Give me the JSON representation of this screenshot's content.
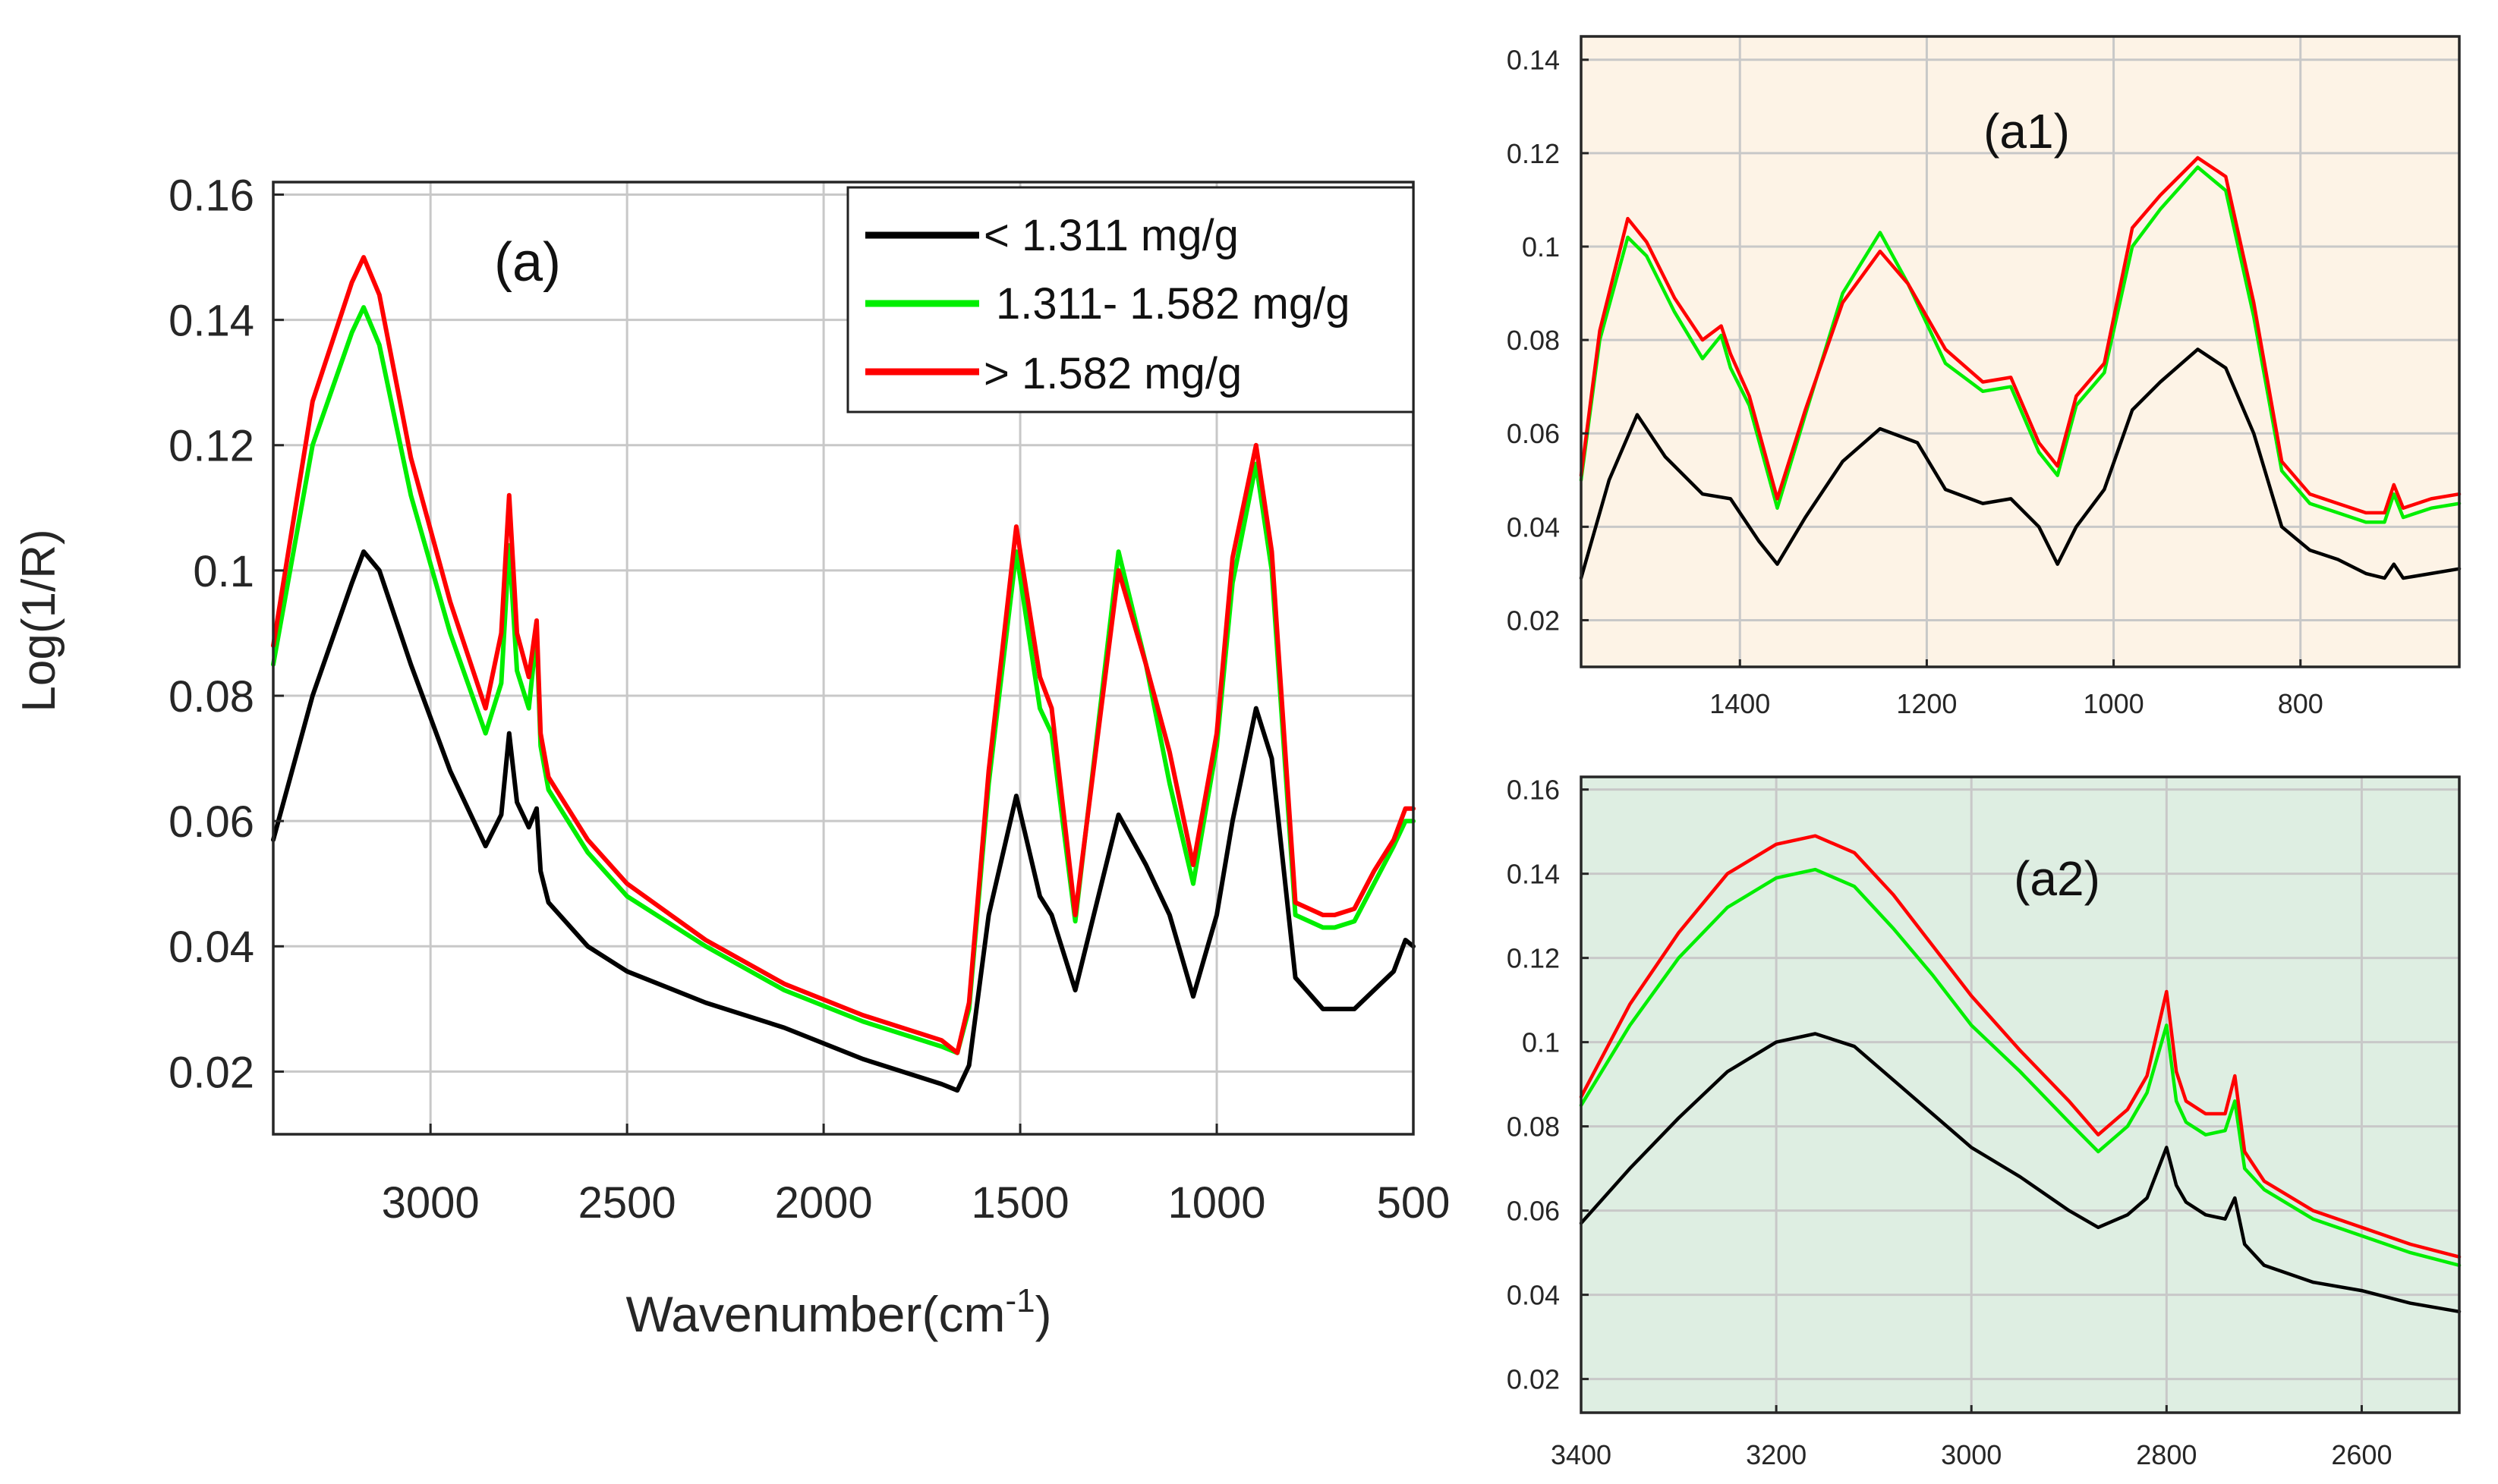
{
  "figure": {
    "ylabel": "Log(1/R)",
    "xlabel_main": "Wavenumber(cm",
    "xlabel_sup": "-1",
    "xlabel_close": ")"
  },
  "legend": [
    {
      "label": "< 1.311 mg/g",
      "color": "#000000"
    },
    {
      "label": "1.311- 1.582 mg/g",
      "color": "#00ee00"
    },
    {
      "label": "> 1.582 mg/g",
      "color": "#ff0000"
    }
  ],
  "chart_data": [
    {
      "id": "a",
      "type": "line",
      "title": "(a)",
      "xlabel": "Wavenumber(cm-1)",
      "ylabel": "Log(1/R)",
      "xlim": [
        3400,
        500
      ],
      "ylim": [
        0.01,
        0.162
      ],
      "xticks": [
        3000,
        2500,
        2000,
        1500,
        1000,
        500
      ],
      "xtick_labels": [
        "3000",
        "2500",
        "2000",
        "1500",
        "1000",
        "500"
      ],
      "yticks": [
        0.02,
        0.04,
        0.06,
        0.08,
        0.1,
        0.12,
        0.14,
        0.16
      ],
      "ytick_labels": [
        "0.02",
        "0.04",
        "0.06",
        "0.08",
        "0.1",
        "0.12",
        "0.14",
        "0.16"
      ],
      "grid": true,
      "background": "#ffffff",
      "legend_position": "top-right",
      "series": [
        {
          "name": "< 1.311 mg/g",
          "color": "#000000",
          "x": [
            3400,
            3300,
            3200,
            3170,
            3130,
            3050,
            2950,
            2860,
            2820,
            2800,
            2780,
            2750,
            2730,
            2720,
            2700,
            2600,
            2500,
            2300,
            2100,
            1900,
            1700,
            1660,
            1630,
            1580,
            1510,
            1450,
            1420,
            1360,
            1250,
            1180,
            1120,
            1060,
            1000,
            960,
            900,
            860,
            800,
            730,
            700,
            650,
            600,
            550,
            520,
            500
          ],
          "y": [
            0.057,
            0.08,
            0.098,
            0.103,
            0.1,
            0.085,
            0.068,
            0.056,
            0.061,
            0.074,
            0.063,
            0.059,
            0.062,
            0.052,
            0.047,
            0.04,
            0.036,
            0.031,
            0.027,
            0.022,
            0.018,
            0.017,
            0.021,
            0.045,
            0.064,
            0.048,
            0.045,
            0.033,
            0.061,
            0.053,
            0.045,
            0.032,
            0.045,
            0.06,
            0.078,
            0.07,
            0.035,
            0.03,
            0.03,
            0.03,
            0.033,
            0.036,
            0.041,
            0.04
          ]
        },
        {
          "name": "1.311- 1.582 mg/g",
          "color": "#00ee00",
          "x": [
            3400,
            3300,
            3200,
            3170,
            3130,
            3050,
            2950,
            2860,
            2820,
            2800,
            2780,
            2750,
            2730,
            2720,
            2700,
            2600,
            2500,
            2300,
            2100,
            1900,
            1700,
            1660,
            1630,
            1580,
            1510,
            1450,
            1420,
            1360,
            1250,
            1180,
            1120,
            1060,
            1000,
            960,
            900,
            860,
            800,
            730,
            700,
            650,
            600,
            550,
            520,
            500
          ],
          "y": [
            0.085,
            0.12,
            0.138,
            0.142,
            0.136,
            0.112,
            0.09,
            0.074,
            0.082,
            0.104,
            0.084,
            0.078,
            0.09,
            0.072,
            0.065,
            0.055,
            0.048,
            0.04,
            0.033,
            0.028,
            0.024,
            0.023,
            0.03,
            0.066,
            0.103,
            0.078,
            0.074,
            0.044,
            0.103,
            0.085,
            0.066,
            0.05,
            0.072,
            0.098,
            0.117,
            0.1,
            0.045,
            0.043,
            0.043,
            0.044,
            0.05,
            0.056,
            0.06,
            0.06
          ]
        },
        {
          "name": "> 1.582 mg/g",
          "color": "#ff0000",
          "x": [
            3400,
            3300,
            3200,
            3170,
            3130,
            3050,
            2950,
            2860,
            2820,
            2800,
            2780,
            2750,
            2730,
            2720,
            2700,
            2600,
            2500,
            2300,
            2100,
            1900,
            1700,
            1660,
            1630,
            1580,
            1510,
            1450,
            1420,
            1360,
            1250,
            1180,
            1120,
            1060,
            1000,
            960,
            900,
            860,
            800,
            730,
            700,
            650,
            600,
            550,
            520,
            500
          ],
          "y": [
            0.088,
            0.127,
            0.146,
            0.15,
            0.144,
            0.118,
            0.095,
            0.078,
            0.09,
            0.112,
            0.09,
            0.083,
            0.092,
            0.074,
            0.067,
            0.057,
            0.05,
            0.041,
            0.034,
            0.029,
            0.025,
            0.023,
            0.031,
            0.068,
            0.107,
            0.083,
            0.078,
            0.045,
            0.1,
            0.085,
            0.071,
            0.053,
            0.074,
            0.102,
            0.12,
            0.103,
            0.047,
            0.045,
            0.045,
            0.046,
            0.052,
            0.057,
            0.062,
            0.062
          ]
        }
      ]
    },
    {
      "id": "a1",
      "type": "line",
      "title": "(a1)",
      "xlim": [
        1570,
        630
      ],
      "ylim": [
        0.01,
        0.145
      ],
      "xticks": [
        1400,
        1200,
        1000,
        800
      ],
      "xtick_labels": [
        "1400",
        "1200",
        "1000",
        "800"
      ],
      "yticks": [
        0.02,
        0.04,
        0.06,
        0.08,
        0.1,
        0.12,
        0.14
      ],
      "ytick_labels": [
        "0.02",
        "0.04",
        "0.06",
        "0.08",
        "0.1",
        "0.12",
        "0.14"
      ],
      "grid": true,
      "background": "#fdf3e6",
      "series": [
        {
          "name": "< 1.311 mg/g",
          "color": "#000000",
          "x": [
            1570,
            1540,
            1510,
            1480,
            1440,
            1410,
            1380,
            1360,
            1330,
            1290,
            1250,
            1210,
            1180,
            1140,
            1110,
            1080,
            1060,
            1040,
            1010,
            980,
            950,
            910,
            880,
            850,
            820,
            790,
            760,
            730,
            710,
            700,
            690,
            660,
            630
          ],
          "y": [
            0.029,
            0.05,
            0.064,
            0.055,
            0.047,
            0.046,
            0.037,
            0.032,
            0.042,
            0.054,
            0.061,
            0.058,
            0.048,
            0.045,
            0.046,
            0.04,
            0.032,
            0.04,
            0.048,
            0.065,
            0.071,
            0.078,
            0.074,
            0.06,
            0.04,
            0.035,
            0.033,
            0.03,
            0.029,
            0.032,
            0.029,
            0.03,
            0.031
          ]
        },
        {
          "name": "1.311- 1.582 mg/g",
          "color": "#00ee00",
          "x": [
            1570,
            1550,
            1520,
            1500,
            1470,
            1440,
            1420,
            1410,
            1390,
            1360,
            1330,
            1290,
            1250,
            1220,
            1180,
            1140,
            1110,
            1080,
            1060,
            1040,
            1010,
            980,
            950,
            910,
            880,
            850,
            820,
            790,
            760,
            730,
            710,
            700,
            690,
            660,
            630
          ],
          "y": [
            0.05,
            0.08,
            0.102,
            0.098,
            0.086,
            0.076,
            0.081,
            0.074,
            0.066,
            0.044,
            0.064,
            0.09,
            0.103,
            0.092,
            0.075,
            0.069,
            0.07,
            0.056,
            0.051,
            0.066,
            0.073,
            0.1,
            0.108,
            0.117,
            0.112,
            0.085,
            0.052,
            0.045,
            0.043,
            0.041,
            0.041,
            0.047,
            0.042,
            0.044,
            0.045
          ]
        },
        {
          "name": "> 1.582 mg/g",
          "color": "#ff0000",
          "x": [
            1570,
            1550,
            1520,
            1500,
            1470,
            1440,
            1420,
            1410,
            1390,
            1360,
            1330,
            1290,
            1250,
            1220,
            1180,
            1140,
            1110,
            1080,
            1060,
            1040,
            1010,
            980,
            950,
            910,
            880,
            850,
            820,
            790,
            760,
            730,
            710,
            700,
            690,
            660,
            630
          ],
          "y": [
            0.051,
            0.082,
            0.106,
            0.101,
            0.089,
            0.08,
            0.083,
            0.077,
            0.068,
            0.046,
            0.065,
            0.088,
            0.099,
            0.092,
            0.078,
            0.071,
            0.072,
            0.058,
            0.053,
            0.068,
            0.075,
            0.104,
            0.111,
            0.119,
            0.115,
            0.088,
            0.054,
            0.047,
            0.045,
            0.043,
            0.043,
            0.049,
            0.044,
            0.046,
            0.047
          ]
        }
      ]
    },
    {
      "id": "a2",
      "type": "line",
      "title": "(a2)",
      "xlim": [
        3400,
        2500
      ],
      "ylim": [
        0.012,
        0.163
      ],
      "xticks": [
        3400,
        3200,
        3000,
        2800,
        2600
      ],
      "xtick_labels": [
        "3400",
        "3200",
        "3000",
        "2800",
        "2600"
      ],
      "yticks": [
        0.02,
        0.04,
        0.06,
        0.08,
        0.1,
        0.12,
        0.14,
        0.16
      ],
      "ytick_labels": [
        "0.02",
        "0.04",
        "0.06",
        "0.08",
        "0.1",
        "0.12",
        "0.14",
        "0.16"
      ],
      "grid": true,
      "background": "#deeee2",
      "series": [
        {
          "name": "< 1.311 mg/g",
          "color": "#000000",
          "x": [
            3400,
            3350,
            3300,
            3250,
            3200,
            3160,
            3120,
            3080,
            3040,
            3000,
            2950,
            2900,
            2870,
            2840,
            2820,
            2800,
            2790,
            2780,
            2760,
            2740,
            2730,
            2720,
            2700,
            2650,
            2600,
            2550,
            2500
          ],
          "y": [
            0.057,
            0.07,
            0.082,
            0.093,
            0.1,
            0.102,
            0.099,
            0.091,
            0.083,
            0.075,
            0.068,
            0.06,
            0.056,
            0.059,
            0.063,
            0.075,
            0.066,
            0.062,
            0.059,
            0.058,
            0.063,
            0.052,
            0.047,
            0.043,
            0.041,
            0.038,
            0.036
          ]
        },
        {
          "name": "1.311- 1.582 mg/g",
          "color": "#00ee00",
          "x": [
            3400,
            3350,
            3300,
            3250,
            3200,
            3160,
            3120,
            3080,
            3040,
            3000,
            2950,
            2900,
            2870,
            2840,
            2820,
            2800,
            2790,
            2780,
            2760,
            2740,
            2730,
            2720,
            2700,
            2650,
            2600,
            2550,
            2500
          ],
          "y": [
            0.085,
            0.104,
            0.12,
            0.132,
            0.139,
            0.141,
            0.137,
            0.127,
            0.116,
            0.104,
            0.093,
            0.081,
            0.074,
            0.08,
            0.088,
            0.104,
            0.086,
            0.081,
            0.078,
            0.079,
            0.086,
            0.07,
            0.065,
            0.058,
            0.054,
            0.05,
            0.047
          ]
        },
        {
          "name": "> 1.582 mg/g",
          "color": "#ff0000",
          "x": [
            3400,
            3350,
            3300,
            3250,
            3200,
            3160,
            3120,
            3080,
            3040,
            3000,
            2950,
            2900,
            2870,
            2840,
            2820,
            2800,
            2790,
            2780,
            2760,
            2740,
            2730,
            2720,
            2700,
            2650,
            2600,
            2550,
            2500
          ],
          "y": [
            0.087,
            0.109,
            0.126,
            0.14,
            0.147,
            0.149,
            0.145,
            0.135,
            0.123,
            0.111,
            0.098,
            0.086,
            0.078,
            0.084,
            0.092,
            0.112,
            0.093,
            0.086,
            0.083,
            0.083,
            0.092,
            0.074,
            0.067,
            0.06,
            0.056,
            0.052,
            0.049
          ]
        }
      ]
    }
  ]
}
